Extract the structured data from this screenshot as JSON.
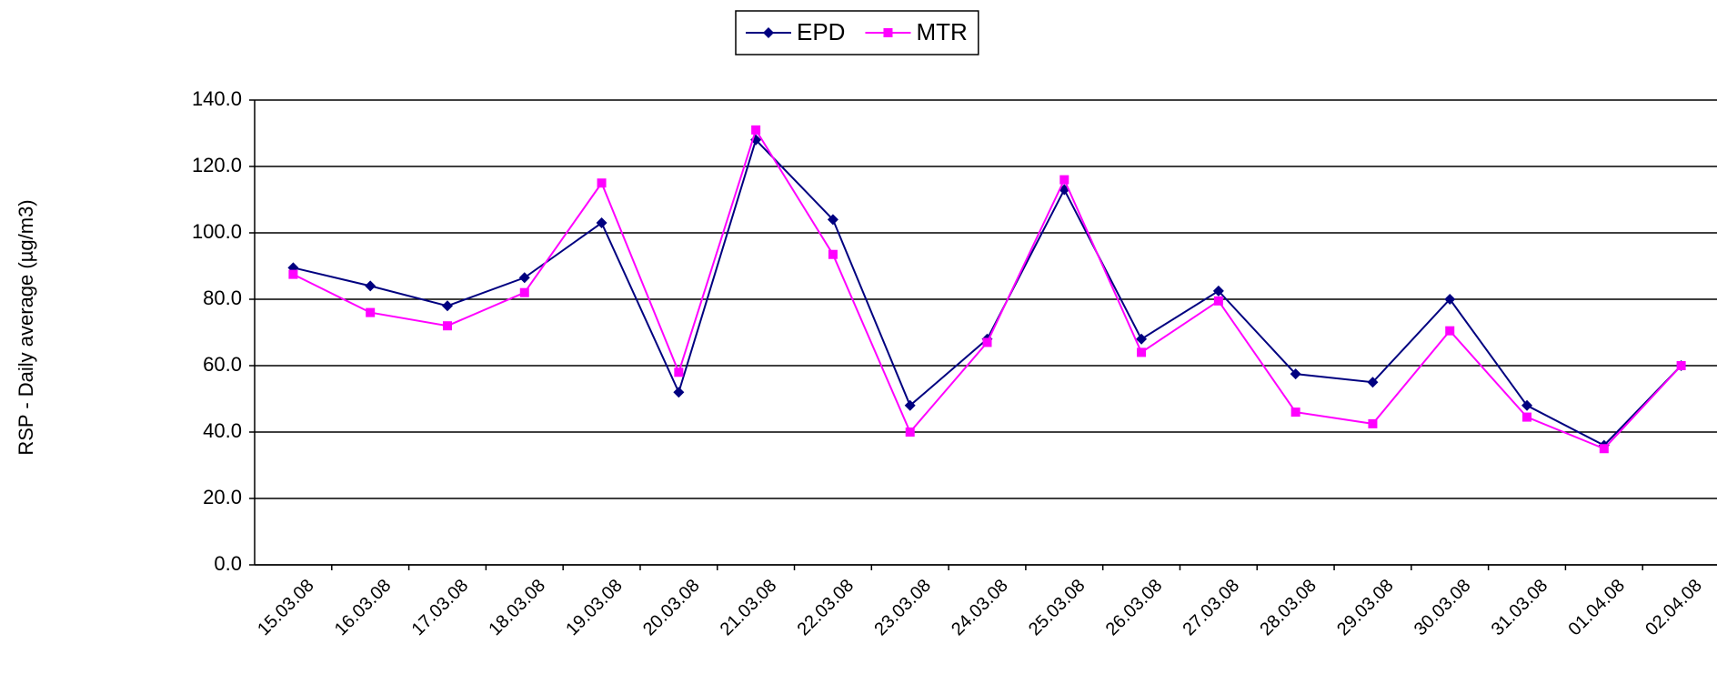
{
  "chart_data": {
    "type": "line",
    "y_label": "RSP - Daily average (µg/m3)",
    "categories": [
      "15.03.08",
      "16.03.08",
      "17.03.08",
      "18.03.08",
      "19.03.08",
      "20.03.08",
      "21.03.08",
      "22.03.08",
      "23.03.08",
      "24.03.08",
      "25.03.08",
      "26.03.08",
      "27.03.08",
      "28.03.08",
      "29.03.08",
      "30.03.08",
      "31.03.08",
      "01.04.08",
      "02.04.08"
    ],
    "series": [
      {
        "name": "EPD",
        "color": "#000080",
        "marker": "diamond",
        "values": [
          89.5,
          84,
          78,
          86.5,
          103,
          52,
          128,
          104,
          48,
          68,
          113,
          68,
          82.5,
          57.5,
          55,
          80,
          48,
          36,
          60
        ]
      },
      {
        "name": "MTR",
        "color": "#ff00ff",
        "marker": "square",
        "values": [
          87.5,
          76,
          72,
          82,
          115,
          58,
          131,
          93.5,
          40,
          67,
          116,
          64,
          79.5,
          46,
          42.5,
          70.5,
          44.5,
          35,
          60
        ]
      }
    ],
    "ylim": [
      0,
      140
    ],
    "yticks": [
      {
        "value": 0,
        "label": "0.0"
      },
      {
        "value": 20,
        "label": "20.0"
      },
      {
        "value": 40,
        "label": "40.0"
      },
      {
        "value": 60,
        "label": "60.0"
      },
      {
        "value": 80,
        "label": "80.0"
      },
      {
        "value": 100,
        "label": "100.0"
      },
      {
        "value": 120,
        "label": "120.0"
      },
      {
        "value": 140,
        "label": "140.0"
      }
    ],
    "grid": true,
    "legend": "top"
  }
}
